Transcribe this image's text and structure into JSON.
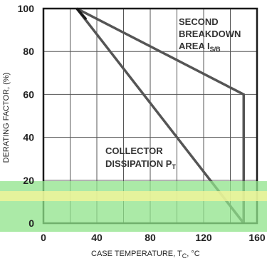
{
  "chart_data": {
    "type": "line",
    "xlabel": "CASE TEMPERATURE, T",
    "xlabel_sub": "C",
    "xlabel_unit": ", °C",
    "ylabel": "DERATING FACTOR, (%)",
    "xlim": [
      0,
      160
    ],
    "ylim": [
      0,
      100
    ],
    "x_ticks": [
      "0",
      "40",
      "80",
      "120",
      "160"
    ],
    "y_ticks": [
      "0",
      "20",
      "40",
      "60",
      "80",
      "100"
    ],
    "grid": true,
    "series": [
      {
        "name": "SECOND BREAKDOWN AREA I",
        "name_sub": "S/B",
        "x": [
          25,
          150,
          150
        ],
        "y": [
          100,
          60,
          0
        ]
      },
      {
        "name": "COLLECTOR DISSIPATION P",
        "name_sub": "T",
        "x": [
          25,
          150
        ],
        "y": [
          100,
          0
        ]
      }
    ],
    "annotations": [
      {
        "lines": [
          "SECOND",
          "BREAKDOWN",
          "AREA I"
        ],
        "sub": "S/B"
      },
      {
        "lines": [
          "COLLECTOR",
          "DISSIPATION P"
        ],
        "sub": "T"
      }
    ],
    "colors": {
      "frame": "#1a1a1a",
      "grid": "#555555",
      "curve": "#555555",
      "highlight_green": "#8fe38a",
      "highlight_yellow": "#f4f59a"
    }
  }
}
